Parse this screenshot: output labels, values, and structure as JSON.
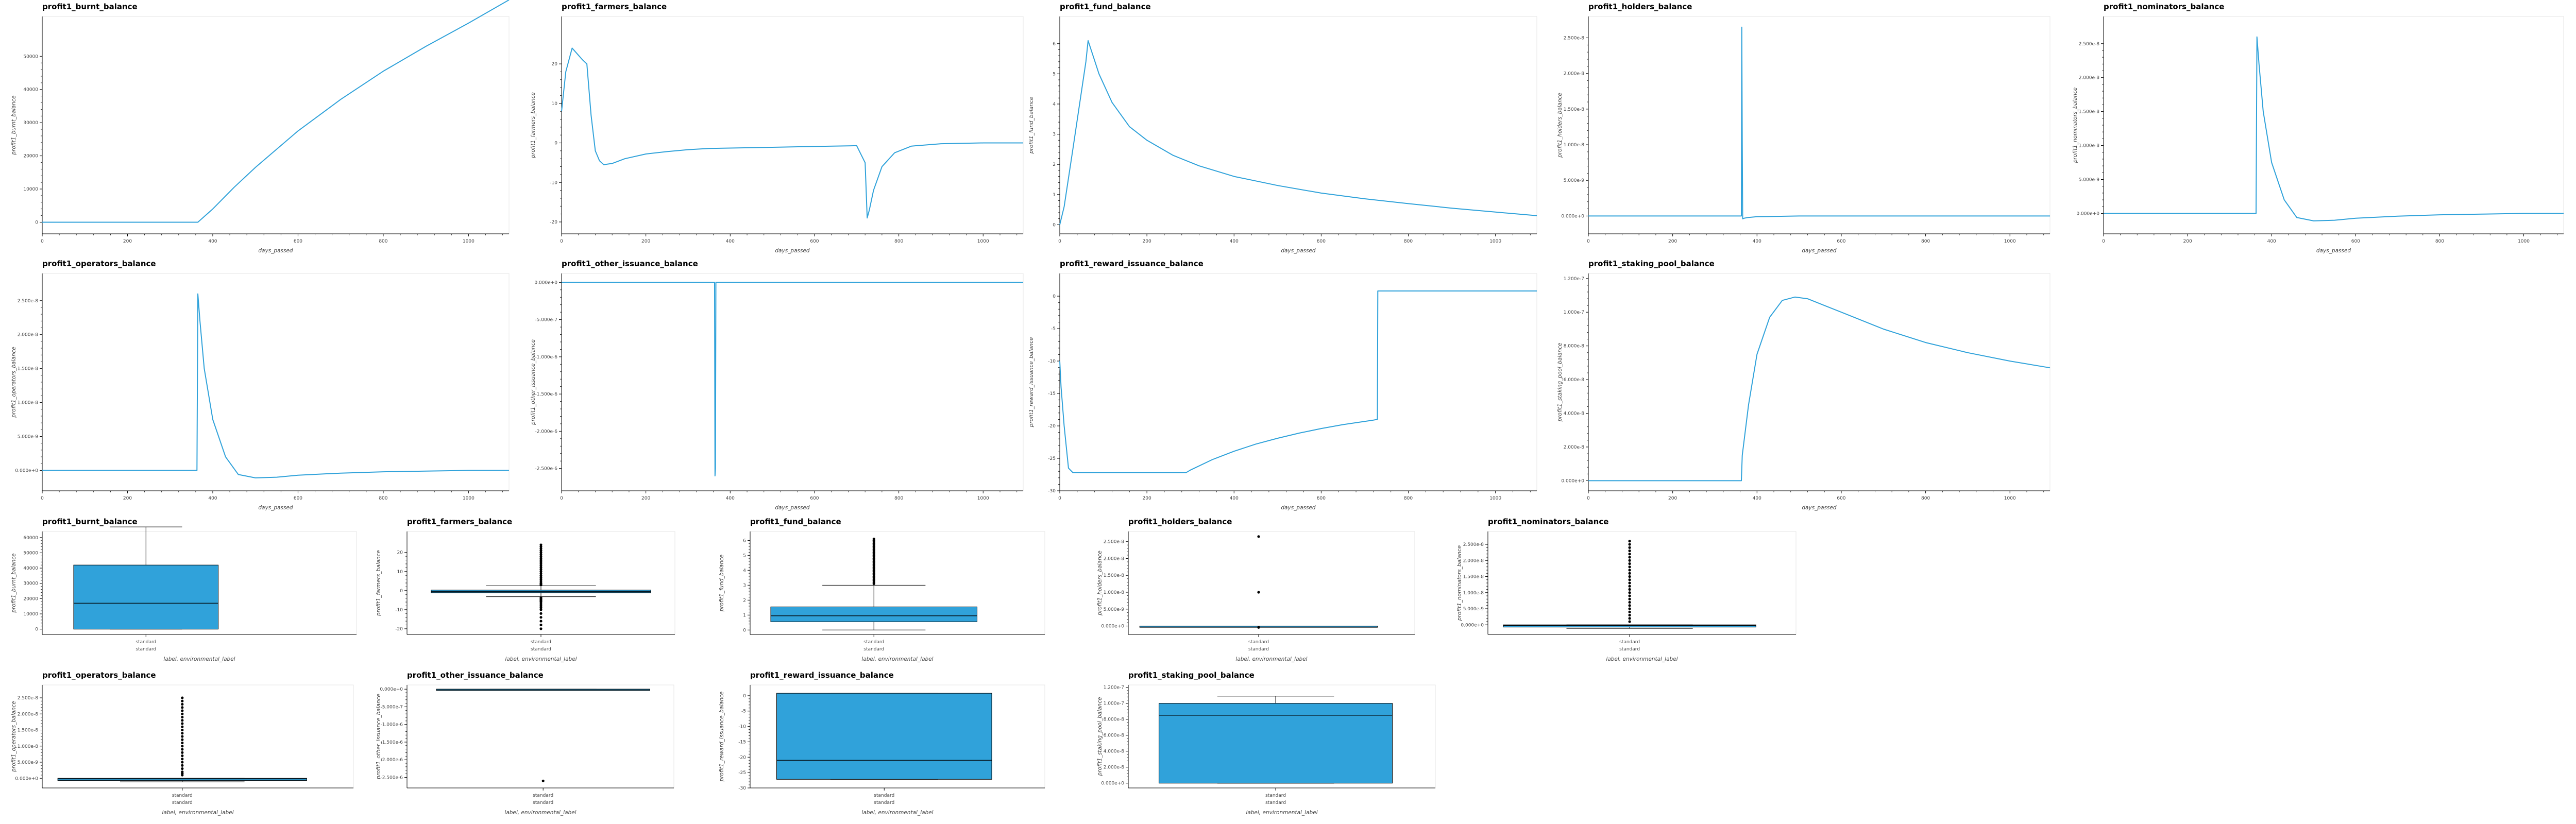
{
  "colors": {
    "line": "#30a2da",
    "box": "#30a2da",
    "grid": "#e5e5e5",
    "axis": "#000000",
    "frame": "#e6e6e6"
  },
  "chart_data": [
    {
      "id": "p0",
      "type": "line",
      "title": "profit1_burnt_balance",
      "xlabel": "days_passed",
      "ylabel": "profit1_burnt_balance",
      "xlim": [
        0,
        1095
      ],
      "ylim": [
        -3500,
        62000
      ],
      "xticks": [
        0,
        200,
        400,
        600,
        800,
        1000
      ],
      "yticks": [
        0,
        10000,
        20000,
        30000,
        40000,
        50000
      ],
      "ytick_labels": [
        "0",
        "10000",
        "20000",
        "30000",
        "40000",
        "50000"
      ],
      "x": [
        0,
        300,
        365,
        400,
        450,
        500,
        600,
        700,
        800,
        900,
        1000,
        1095
      ],
      "y": [
        0,
        0,
        0,
        4000,
        10500,
        16500,
        27500,
        37000,
        45500,
        53000,
        60000,
        67000
      ]
    },
    {
      "id": "p1",
      "type": "line",
      "title": "profit1_farmers_balance",
      "xlabel": "days_passed",
      "ylabel": "profit1_farmers_balance",
      "xlim": [
        0,
        1095
      ],
      "ylim": [
        -23,
        32
      ],
      "xticks": [
        0,
        200,
        400,
        600,
        800,
        1000
      ],
      "yticks": [
        -20,
        -10,
        0,
        10,
        20
      ],
      "ytick_labels": [
        "-20",
        "-10",
        "0",
        "10",
        "20"
      ],
      "x": [
        0,
        10,
        25,
        50,
        60,
        70,
        80,
        90,
        100,
        120,
        150,
        200,
        250,
        300,
        350,
        400,
        500,
        600,
        700,
        720,
        725,
        730,
        740,
        760,
        790,
        830,
        900,
        1000,
        1095
      ],
      "y": [
        8,
        18,
        24,
        21,
        20,
        7,
        -2,
        -4.5,
        -5.5,
        -5.2,
        -4,
        -2.8,
        -2.2,
        -1.7,
        -1.4,
        -1.3,
        -1.1,
        -0.9,
        -0.7,
        -5,
        -19,
        -17,
        -12,
        -6,
        -2.5,
        -0.8,
        -0.2,
        0,
        0
      ]
    },
    {
      "id": "p2",
      "type": "line",
      "title": "profit1_fund_balance",
      "xlabel": "days_passed",
      "ylabel": "profit1_fund_balance",
      "xlim": [
        0,
        1095
      ],
      "ylim": [
        -0.3,
        6.9
      ],
      "xticks": [
        0,
        200,
        400,
        600,
        800,
        1000
      ],
      "yticks": [
        0,
        1,
        2,
        3,
        4,
        5,
        6
      ],
      "ytick_labels": [
        "0",
        "1",
        "2",
        "3",
        "4",
        "5",
        "6"
      ],
      "x": [
        0,
        10,
        30,
        60,
        65,
        90,
        120,
        160,
        200,
        260,
        320,
        400,
        500,
        600,
        700,
        800,
        900,
        1000,
        1095
      ],
      "y": [
        0,
        0.6,
        2.5,
        5.4,
        6.1,
        5.0,
        4.05,
        3.25,
        2.8,
        2.3,
        1.95,
        1.6,
        1.3,
        1.05,
        0.86,
        0.7,
        0.55,
        0.42,
        0.3
      ]
    },
    {
      "id": "p3",
      "type": "line",
      "title": "profit1_holders_balance",
      "xlabel": "days_passed",
      "ylabel": "profit1_holders_balance",
      "xlim": [
        0,
        1095
      ],
      "ylim": [
        -2.5e-09,
        2.8e-08
      ],
      "xticks": [
        0,
        200,
        400,
        600,
        800,
        1000
      ],
      "yticks": [
        0,
        5e-09,
        1e-08,
        1.5e-08,
        2e-08,
        2.5e-08
      ],
      "ytick_labels": [
        "0.000e+0",
        "5.000e-9",
        "1.000e-8",
        "1.500e-8",
        "2.000e-8",
        "2.500e-8"
      ],
      "x": [
        0,
        363,
        364,
        365,
        366,
        370,
        380,
        400,
        500,
        700,
        1095
      ],
      "y": [
        0,
        0,
        2.65e-08,
        1e-08,
        -4e-10,
        -3e-10,
        -2e-10,
        -1e-10,
        0,
        0,
        0
      ]
    },
    {
      "id": "p4",
      "type": "line",
      "title": "profit1_nominators_balance",
      "xlabel": "days_passed",
      "ylabel": "profit1_nominators_balance",
      "xlim": [
        0,
        1095
      ],
      "ylim": [
        -3e-09,
        2.9e-08
      ],
      "xticks": [
        0,
        200,
        400,
        600,
        800,
        1000
      ],
      "yticks": [
        0,
        5e-09,
        1e-08,
        1.5e-08,
        2e-08,
        2.5e-08
      ],
      "ytick_labels": [
        "0.000e+0",
        "5.000e-9",
        "1.000e-8",
        "1.500e-8",
        "2.000e-8",
        "2.500e-8"
      ],
      "x": [
        0,
        360,
        363,
        365,
        370,
        380,
        400,
        430,
        460,
        500,
        550,
        600,
        700,
        800,
        900,
        1000,
        1095
      ],
      "y": [
        0,
        0,
        0,
        2.6e-08,
        2.2e-08,
        1.5e-08,
        7.5e-09,
        2e-09,
        -6e-10,
        -1.1e-09,
        -1e-09,
        -7e-10,
        -4e-10,
        -2e-10,
        -1e-10,
        0,
        0
      ]
    },
    {
      "id": "p5",
      "type": "line",
      "title": "profit1_operators_balance",
      "xlabel": "days_passed",
      "ylabel": "profit1_operators_balance",
      "xlim": [
        0,
        1095
      ],
      "ylim": [
        -3e-09,
        2.9e-08
      ],
      "xticks": [
        0,
        200,
        400,
        600,
        800,
        1000
      ],
      "yticks": [
        0,
        5e-09,
        1e-08,
        1.5e-08,
        2e-08,
        2.5e-08
      ],
      "ytick_labels": [
        "0.000e+0",
        "5.000e-9",
        "1.000e-8",
        "1.500e-8",
        "2.000e-8",
        "2.500e-8"
      ],
      "x": [
        0,
        360,
        363,
        365,
        370,
        380,
        400,
        430,
        460,
        500,
        550,
        600,
        700,
        800,
        900,
        1000,
        1095
      ],
      "y": [
        0,
        0,
        0,
        2.6e-08,
        2.2e-08,
        1.5e-08,
        7.5e-09,
        2e-09,
        -6e-10,
        -1.1e-09,
        -1e-09,
        -7e-10,
        -4e-10,
        -2e-10,
        -1e-10,
        0,
        0
      ]
    },
    {
      "id": "p6",
      "type": "line",
      "title": "profit1_other_issuance_balance",
      "xlabel": "days_passed",
      "ylabel": "profit1_other_issuance_balance",
      "xlim": [
        0,
        1095
      ],
      "ylim": [
        -2.8e-06,
        1.2e-07
      ],
      "xticks": [
        0,
        200,
        400,
        600,
        800,
        1000
      ],
      "yticks": [
        0,
        -5e-07,
        -1e-06,
        -1.5e-06,
        -2e-06,
        -2.5e-06
      ],
      "ytick_labels": [
        "0.000e+0",
        "-5.000e-7",
        "-1.000e-6",
        "-1.500e-6",
        "-2.000e-6",
        "-2.500e-6"
      ],
      "x": [
        0,
        363,
        364,
        365,
        366,
        1095
      ],
      "y": [
        0,
        0,
        -2.6e-06,
        -2.5e-06,
        0,
        0
      ]
    },
    {
      "id": "p7",
      "type": "line",
      "title": "profit1_reward_issuance_balance",
      "xlabel": "days_passed",
      "ylabel": "profit1_reward_issuance_balance",
      "xlim": [
        0,
        1095
      ],
      "ylim": [
        -30,
        3.5
      ],
      "xticks": [
        0,
        200,
        400,
        600,
        800,
        1000
      ],
      "yticks": [
        0,
        -5,
        -10,
        -15,
        -20,
        -25,
        -30
      ],
      "ytick_labels": [
        "0",
        "-5",
        "-10",
        "-15",
        "-20",
        "-25",
        "-30"
      ],
      "x": [
        0,
        3,
        10,
        20,
        30,
        290,
        300,
        350,
        400,
        450,
        500,
        550,
        600,
        650,
        700,
        720,
        729,
        730,
        731,
        1095
      ],
      "y": [
        -10,
        -14,
        -20,
        -26.5,
        -27.2,
        -27.2,
        -26.8,
        -25.2,
        -23.9,
        -22.8,
        -21.9,
        -21.1,
        -20.4,
        -19.8,
        -19.3,
        -19.1,
        -19,
        0.8,
        0.8,
        0.8
      ]
    },
    {
      "id": "p8",
      "type": "line",
      "title": "profit1_staking_pool_balance",
      "xlabel": "days_passed",
      "ylabel": "profit1_staking_pool_balance",
      "xlim": [
        0,
        1095
      ],
      "ylim": [
        -6e-09,
        1.23e-07
      ],
      "xticks": [
        0,
        200,
        400,
        600,
        800,
        1000
      ],
      "yticks": [
        0,
        2e-08,
        4e-08,
        6e-08,
        8e-08,
        1e-07,
        1.2e-07
      ],
      "ytick_labels": [
        "0.000e+0",
        "2.000e-8",
        "4.000e-8",
        "6.000e-8",
        "8.000e-8",
        "1.000e-7",
        "1.200e-7"
      ],
      "x": [
        0,
        363,
        365,
        380,
        400,
        430,
        460,
        490,
        520,
        560,
        600,
        700,
        800,
        900,
        1000,
        1095
      ],
      "y": [
        0,
        0,
        1.5e-08,
        4.5e-08,
        7.5e-08,
        9.7e-08,
        1.07e-07,
        1.09e-07,
        1.08e-07,
        1.04e-07,
        1e-07,
        9e-08,
        8.2e-08,
        7.6e-08,
        7.1e-08,
        6.7e-08
      ]
    },
    {
      "id": "b0",
      "type": "box",
      "title": "profit1_burnt_balance",
      "xlabel": "label, environmental_label",
      "ylabel": "profit1_burnt_balance",
      "category": "standard",
      "category_sub": "standard",
      "ylim": [
        -3500,
        64000
      ],
      "yticks": [
        0,
        10000,
        20000,
        30000,
        40000,
        50000,
        60000
      ],
      "ytick_labels": [
        "0",
        "10000",
        "20000",
        "30000",
        "40000",
        "50000",
        "60000"
      ],
      "whisker_low": 0,
      "q1": 0,
      "median": 17000,
      "q3": 42000,
      "whisker_high": 67000,
      "outliers": []
    },
    {
      "id": "b1",
      "type": "box",
      "title": "profit1_farmers_balance",
      "xlabel": "label, environmental_label",
      "ylabel": "profit1_farmers_balance",
      "category": "standard",
      "category_sub": "standard",
      "ylim": [
        -23,
        31
      ],
      "yticks": [
        -20,
        -10,
        0,
        10,
        20
      ],
      "ytick_labels": [
        "-20",
        "-10",
        "0",
        "10",
        "20"
      ],
      "whisker_low": -3.2,
      "q1": -1.1,
      "median": -0.5,
      "q3": 0.3,
      "whisker_high": 2.5,
      "outliers": [
        -20,
        -18,
        -16,
        -14,
        -12,
        -10,
        -9,
        -8,
        -7,
        -6,
        -5.5,
        -5,
        -4.5,
        -4,
        -3.7,
        3,
        3.5,
        4,
        5,
        6,
        7,
        8,
        9,
        10,
        11,
        12,
        13,
        14,
        15,
        16,
        17,
        18,
        19,
        20,
        21,
        22,
        23,
        24
      ]
    },
    {
      "id": "b2",
      "type": "box",
      "title": "profit1_fund_balance",
      "xlabel": "label, environmental_label",
      "ylabel": "profit1_fund_balance",
      "category": "standard",
      "category_sub": "standard",
      "ylim": [
        -0.3,
        6.6
      ],
      "yticks": [
        0,
        1,
        2,
        3,
        4,
        5,
        6
      ],
      "ytick_labels": [
        "0",
        "1",
        "2",
        "3",
        "4",
        "5",
        "6"
      ],
      "whisker_low": 0,
      "q1": 0.55,
      "median": 0.95,
      "q3": 1.55,
      "whisker_high": 3.0,
      "outliers": [
        3.1,
        3.2,
        3.3,
        3.4,
        3.5,
        3.6,
        3.7,
        3.8,
        3.9,
        4.0,
        4.1,
        4.2,
        4.3,
        4.4,
        4.5,
        4.6,
        4.7,
        4.8,
        4.9,
        5.0,
        5.1,
        5.2,
        5.3,
        5.4,
        5.5,
        5.6,
        5.7,
        5.8,
        5.9,
        6.0,
        6.1
      ]
    },
    {
      "id": "b3",
      "type": "box",
      "title": "profit1_holders_balance",
      "xlabel": "label, environmental_label",
      "ylabel": "profit1_holders_balance",
      "category": "standard",
      "category_sub": "standard",
      "ylim": [
        -2.5e-09,
        2.8e-08
      ],
      "yticks": [
        0,
        5e-09,
        1e-08,
        1.5e-08,
        2e-08,
        2.5e-08
      ],
      "ytick_labels": [
        "0.000e+0",
        "5.000e-9",
        "1.000e-8",
        "1.500e-8",
        "2.000e-8",
        "2.500e-8"
      ],
      "whisker_low": 0,
      "q1": 0,
      "median": 0,
      "q3": 0,
      "whisker_high": 0,
      "outliers": [
        2.65e-08,
        1e-08,
        -4e-10
      ]
    },
    {
      "id": "b4",
      "type": "box",
      "title": "profit1_nominators_balance",
      "xlabel": "label, environmental_label",
      "ylabel": "profit1_nominators_balance",
      "category": "standard",
      "category_sub": "standard",
      "ylim": [
        -3e-09,
        2.9e-08
      ],
      "yticks": [
        0,
        5e-09,
        1e-08,
        1.5e-08,
        2e-08,
        2.5e-08
      ],
      "ytick_labels": [
        "0.000e+0",
        "5.000e-9",
        "1.000e-8",
        "1.500e-8",
        "2.000e-8",
        "2.500e-8"
      ],
      "whisker_low": -1.1e-09,
      "q1": -7e-10,
      "median": -2e-10,
      "q3": 0,
      "whisker_high": 0,
      "outliers": [
        1e-09,
        2e-09,
        3e-09,
        4e-09,
        5e-09,
        6e-09,
        7e-09,
        8e-09,
        9e-09,
        1e-08,
        1.1e-08,
        1.2e-08,
        1.3e-08,
        1.4e-08,
        1.5e-08,
        1.6e-08,
        1.7e-08,
        1.8e-08,
        1.9e-08,
        2e-08,
        2.1e-08,
        2.2e-08,
        2.3e-08,
        2.4e-08,
        2.5e-08,
        2.6e-08
      ]
    },
    {
      "id": "b5",
      "type": "box",
      "title": "profit1_operators_balance",
      "xlabel": "label, environmental_label",
      "ylabel": "profit1_operators_balance",
      "category": "standard",
      "category_sub": "standard",
      "ylim": [
        -3e-09,
        2.9e-08
      ],
      "yticks": [
        0,
        5e-09,
        1e-08,
        1.5e-08,
        2e-08,
        2.5e-08
      ],
      "ytick_labels": [
        "0.000e+0",
        "5.000e-9",
        "1.000e-8",
        "1.500e-8",
        "2.000e-8",
        "2.500e-8"
      ],
      "whisker_low": -1.1e-09,
      "q1": -7e-10,
      "median": -2e-10,
      "q3": 0,
      "whisker_high": 0,
      "outliers": [
        1e-09,
        1.5e-09,
        2e-09,
        3e-09,
        4e-09,
        5e-09,
        6e-09,
        7e-09,
        8e-09,
        9e-09,
        1e-08,
        1.1e-08,
        1.2e-08,
        1.3e-08,
        1.4e-08,
        1.5e-08,
        1.6e-08,
        1.7e-08,
        1.8e-08,
        1.9e-08,
        2e-08,
        2.1e-08,
        2.2e-08,
        2.3e-08,
        2.4e-08,
        2.5e-08
      ]
    },
    {
      "id": "b6",
      "type": "box",
      "title": "profit1_other_issuance_balance",
      "xlabel": "label, environmental_label",
      "ylabel": "profit1_other_issuance_balance",
      "category": "standard",
      "category_sub": "standard",
      "ylim": [
        -2.8e-06,
        1.2e-07
      ],
      "yticks": [
        0,
        -5e-07,
        -1e-06,
        -1.5e-06,
        -2e-06,
        -2.5e-06
      ],
      "ytick_labels": [
        "0.000e+0",
        "-5.000e-7",
        "-1.000e-6",
        "-1.500e-6",
        "-2.000e-6",
        "-2.500e-6"
      ],
      "whisker_low": 0,
      "q1": 0,
      "median": 0,
      "q3": 0,
      "whisker_high": 0,
      "outliers": [
        -2.6e-06
      ]
    },
    {
      "id": "b7",
      "type": "box",
      "title": "profit1_reward_issuance_balance",
      "xlabel": "label, environmental_label",
      "ylabel": "profit1_reward_issuance_balance",
      "category": "standard",
      "category_sub": "standard",
      "ylim": [
        -30,
        3.5
      ],
      "yticks": [
        0,
        -5,
        -10,
        -15,
        -20,
        -25,
        -30
      ],
      "ytick_labels": [
        "0",
        "-5",
        "-10",
        "-15",
        "-20",
        "-25",
        "-30"
      ],
      "whisker_low": -27.2,
      "q1": -27.2,
      "median": -21,
      "q3": 0.8,
      "whisker_high": 0.8,
      "outliers": []
    },
    {
      "id": "b8",
      "type": "box",
      "title": "profit1_staking_pool_balance",
      "xlabel": "label, environmental_label",
      "ylabel": "profit1_staking_pool_balance",
      "category": "standard",
      "category_sub": "standard",
      "ylim": [
        -6e-09,
        1.23e-07
      ],
      "yticks": [
        0,
        2e-08,
        4e-08,
        6e-08,
        8e-08,
        1e-07,
        1.2e-07
      ],
      "ytick_labels": [
        "0.000e+0",
        "2.000e-8",
        "4.000e-8",
        "6.000e-8",
        "8.000e-8",
        "1.000e-7",
        "1.200e-7"
      ],
      "whisker_low": 0,
      "q1": 0,
      "median": 8.5e-08,
      "q3": 1e-07,
      "whisker_high": 1.09e-07,
      "outliers": []
    }
  ]
}
